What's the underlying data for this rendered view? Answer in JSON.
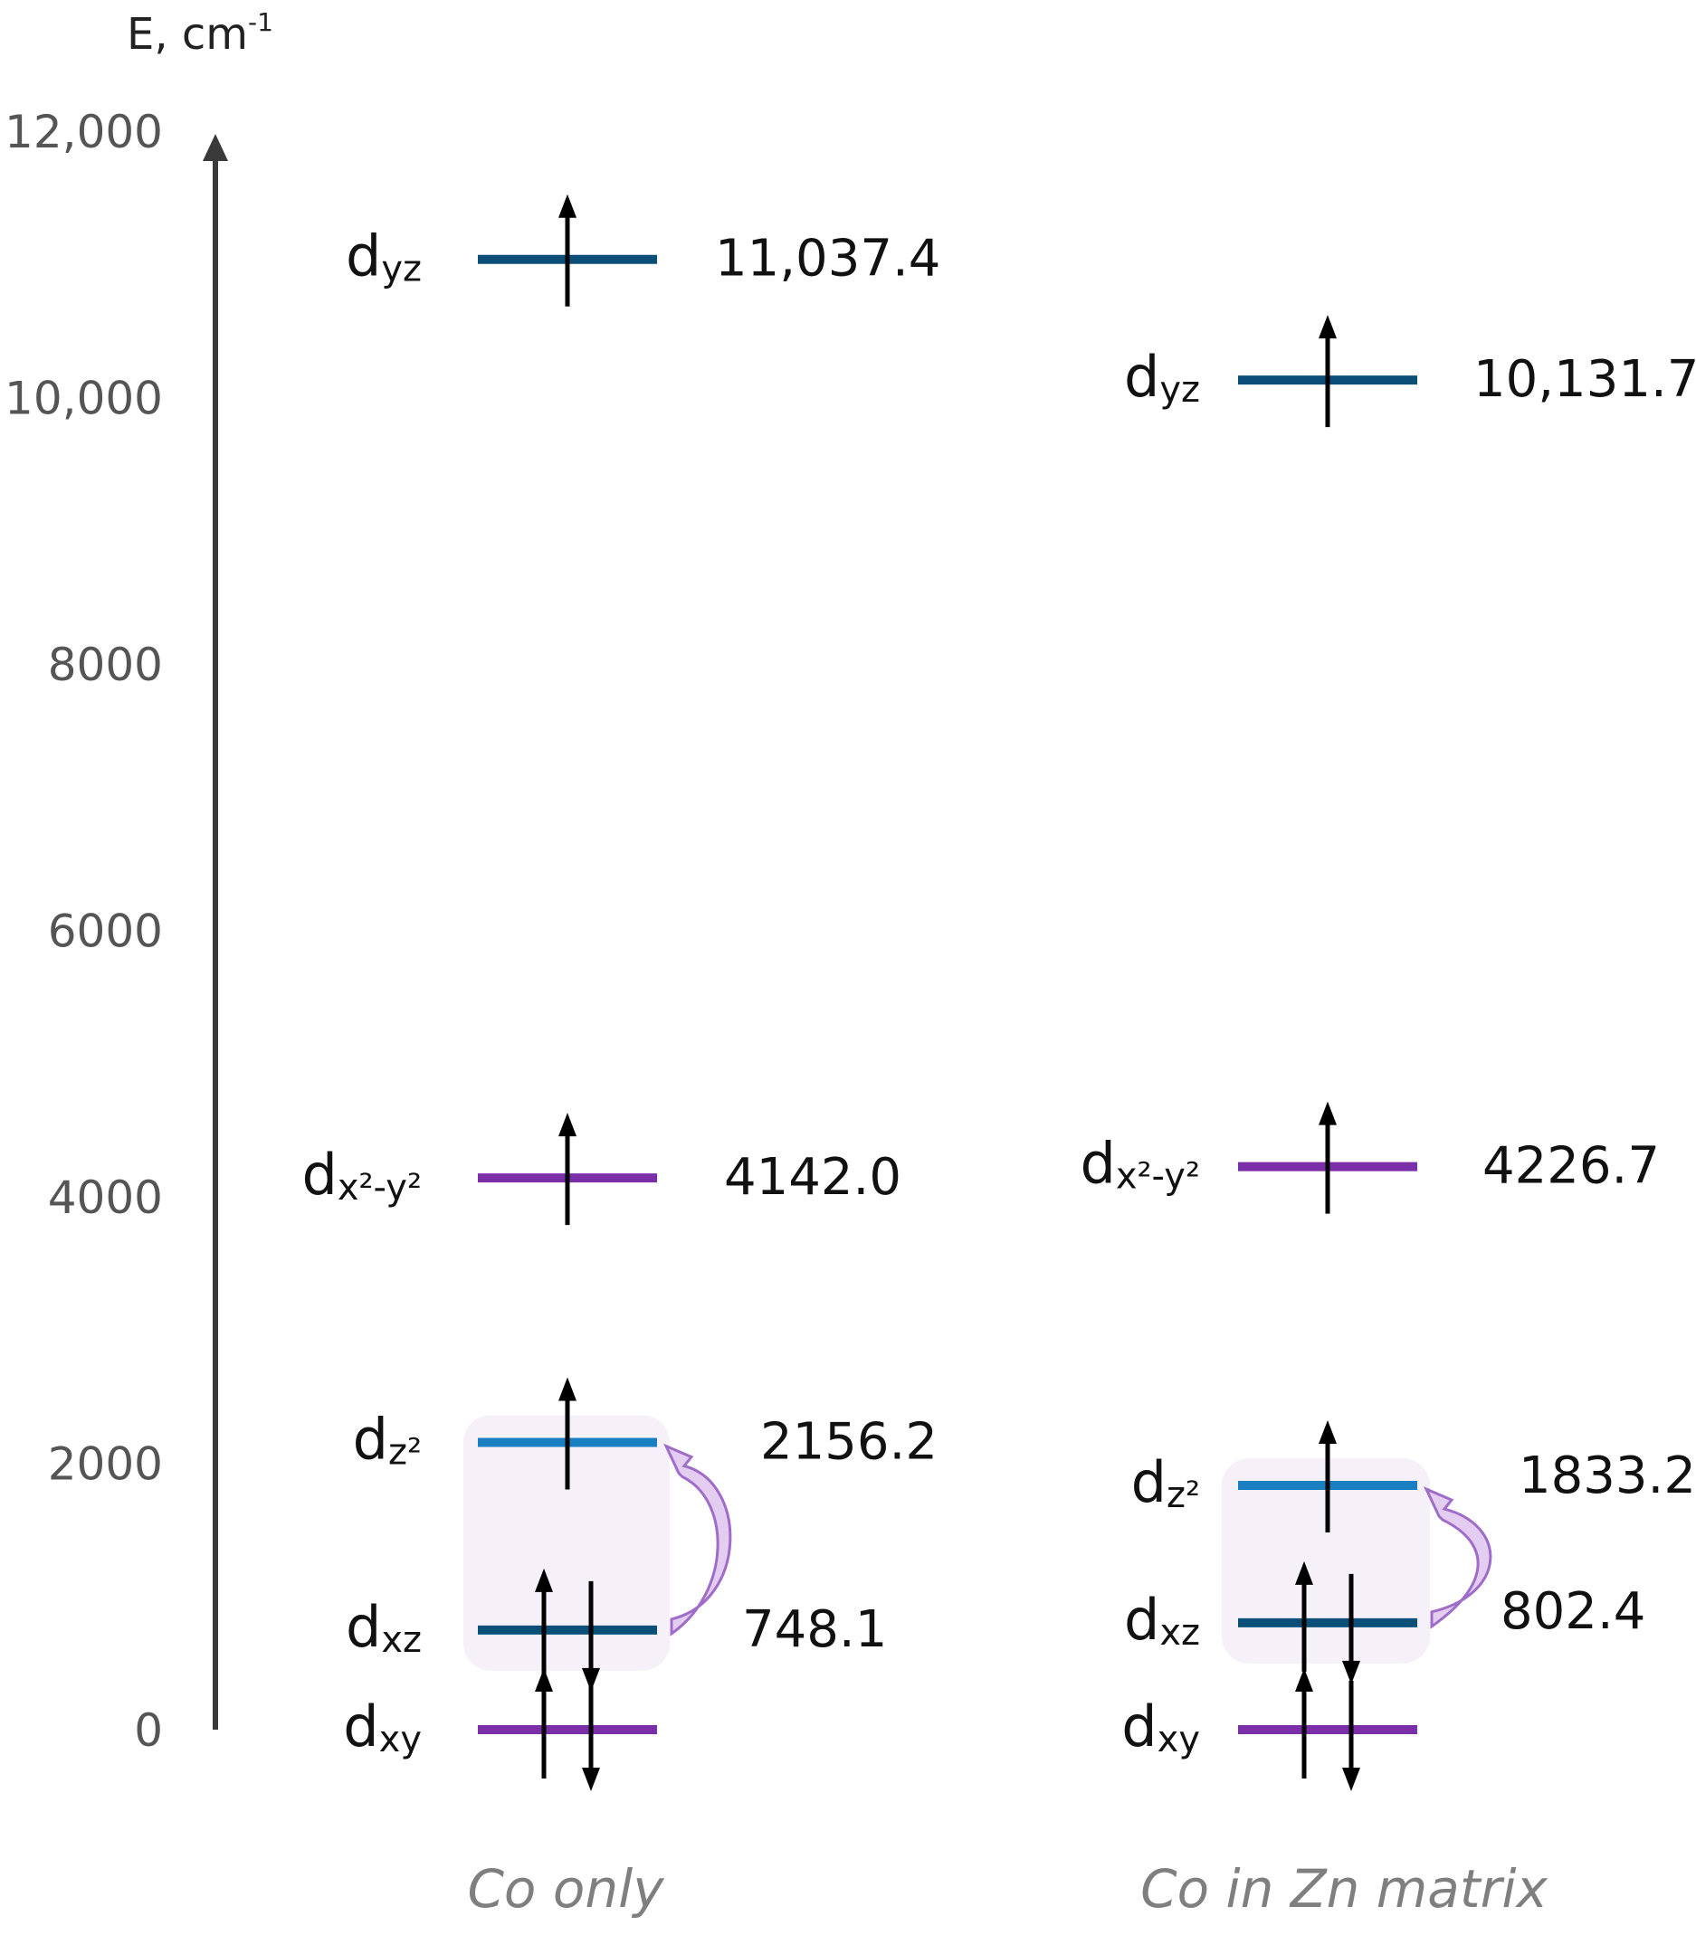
{
  "axis": {
    "label_main": "E, cm",
    "label_exp": "-1",
    "ticks": [
      {
        "value": 12000,
        "label": "12,000"
      },
      {
        "value": 10000,
        "label": "10,000"
      },
      {
        "value": 8000,
        "label": "8000"
      },
      {
        "value": 6000,
        "label": "6000"
      },
      {
        "value": 4000,
        "label": "4000"
      },
      {
        "value": 2000,
        "label": "2000"
      },
      {
        "value": 0,
        "label": "0"
      }
    ],
    "range": [
      0,
      12000
    ]
  },
  "colors": {
    "dark_blue": "#0b4f79",
    "light_blue": "#1a7fc1",
    "purple": "#7a2fa8",
    "axis": "#3a3a3a",
    "highlight_fill": "#f6f0f9",
    "curve_fill": "#e3cdf0",
    "curve_stroke": "#a06cc9"
  },
  "columns": [
    {
      "caption": "Co only",
      "levels": [
        {
          "key": "dyz",
          "base": "d",
          "sub": "yz",
          "energy": 11037.4,
          "label": "11,037.4",
          "color": "dark_blue",
          "electrons": "up"
        },
        {
          "key": "dx2y2",
          "base": "d",
          "sub": "x²-y²",
          "energy": 4142.0,
          "label": "4142.0",
          "color": "purple",
          "electrons": "up"
        },
        {
          "key": "dz2",
          "base": "d",
          "sub": "z²",
          "energy": 2156.2,
          "label": "2156.2",
          "color": "light_blue",
          "electrons": "up"
        },
        {
          "key": "dxz",
          "base": "d",
          "sub": "xz",
          "energy": 748.1,
          "label": "748.1",
          "color": "dark_blue",
          "electrons": "pair"
        },
        {
          "key": "dxy",
          "base": "d",
          "sub": "xy",
          "energy": 0,
          "label": "",
          "color": "purple",
          "electrons": "pair"
        }
      ]
    },
    {
      "caption": "Co in Zn matrix",
      "levels": [
        {
          "key": "dyz",
          "base": "d",
          "sub": "yz",
          "energy": 10131.7,
          "label": "10,131.7",
          "color": "dark_blue",
          "electrons": "up"
        },
        {
          "key": "dx2y2",
          "base": "d",
          "sub": "x²-y²",
          "energy": 4226.7,
          "label": "4226.7",
          "color": "purple",
          "electrons": "up"
        },
        {
          "key": "dz2",
          "base": "d",
          "sub": "z²",
          "energy": 1833.2,
          "label": "1833.2",
          "color": "light_blue",
          "electrons": "up"
        },
        {
          "key": "dxz",
          "base": "d",
          "sub": "xz",
          "energy": 802.4,
          "label": "802.4",
          "color": "dark_blue",
          "electrons": "pair"
        },
        {
          "key": "dxy",
          "base": "d",
          "sub": "xy",
          "energy": 0,
          "label": "",
          "color": "purple",
          "electrons": "pair"
        }
      ]
    }
  ]
}
